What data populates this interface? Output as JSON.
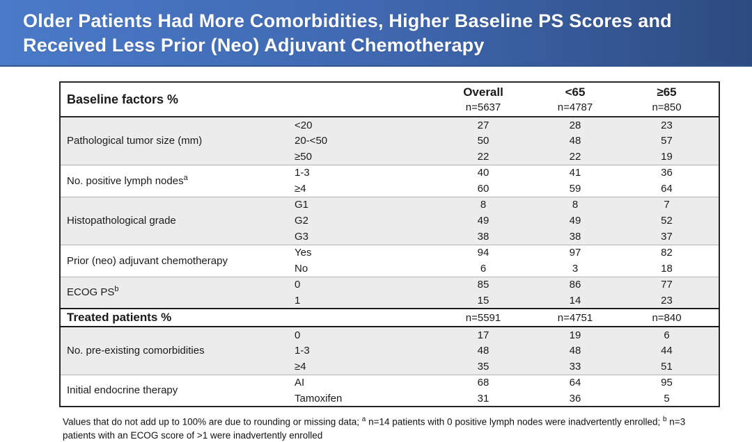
{
  "title": {
    "line1": "Older Patients Had More Comorbidities, Higher Baseline PS Scores and",
    "line2": "Received Less Prior (Neo) Adjuvant Chemotherapy"
  },
  "colors": {
    "banner_gradient_left": "#4a7ac9",
    "banner_gradient_right": "#2d4b80",
    "row_shade": "#ececec",
    "table_border": "#262626",
    "title_text": "#ffffff"
  },
  "table": {
    "header": {
      "label": "Baseline factors %",
      "columns": [
        {
          "name": "Overall",
          "n": "n=5637"
        },
        {
          "name": "<65",
          "n": "n=4787"
        },
        {
          "name": "≥65",
          "n": "n=850"
        }
      ]
    },
    "baseline_groups": [
      {
        "factor": "Pathological tumor size (mm)",
        "sup": "",
        "shaded": true,
        "rows": [
          {
            "level": "<20",
            "values": [
              "27",
              "28",
              "23"
            ]
          },
          {
            "level": "20-<50",
            "values": [
              "50",
              "48",
              "57"
            ]
          },
          {
            "level": "≥50",
            "values": [
              "22",
              "22",
              "19"
            ]
          }
        ]
      },
      {
        "factor": "No. positive lymph nodes",
        "sup": "a",
        "shaded": false,
        "rows": [
          {
            "level": "1-3",
            "values": [
              "40",
              "41",
              "36"
            ]
          },
          {
            "level": "≥4",
            "values": [
              "60",
              "59",
              "64"
            ]
          }
        ]
      },
      {
        "factor": "Histopathological grade",
        "sup": "",
        "shaded": true,
        "rows": [
          {
            "level": "G1",
            "values": [
              "8",
              "8",
              "7"
            ]
          },
          {
            "level": "G2",
            "values": [
              "49",
              "49",
              "52"
            ]
          },
          {
            "level": "G3",
            "values": [
              "38",
              "38",
              "37"
            ]
          }
        ]
      },
      {
        "factor": "Prior (neo) adjuvant chemotherapy",
        "sup": "",
        "shaded": false,
        "rows": [
          {
            "level": "Yes",
            "values": [
              "94",
              "97",
              "82"
            ]
          },
          {
            "level": "No",
            "values": [
              "6",
              "3",
              "18"
            ]
          }
        ]
      },
      {
        "factor": "ECOG PS",
        "sup": "b",
        "shaded": true,
        "rows": [
          {
            "level": "0",
            "values": [
              "85",
              "86",
              "77"
            ]
          },
          {
            "level": "1",
            "values": [
              "15",
              "14",
              "23"
            ]
          }
        ]
      }
    ],
    "treated_row": {
      "label": "Treated patients %",
      "values": [
        "n=5591",
        "n=4751",
        "n=840"
      ]
    },
    "treated_groups": [
      {
        "factor": "No. pre-existing comorbidities",
        "sup": "",
        "shaded": true,
        "rows": [
          {
            "level": "0",
            "values": [
              "17",
              "19",
              "6"
            ]
          },
          {
            "level": "1-3",
            "values": [
              "48",
              "48",
              "44"
            ]
          },
          {
            "level": "≥4",
            "values": [
              "35",
              "33",
              "51"
            ]
          }
        ]
      },
      {
        "factor": "Initial endocrine therapy",
        "sup": "",
        "shaded": false,
        "rows": [
          {
            "level": "AI",
            "values": [
              "68",
              "64",
              "95"
            ]
          },
          {
            "level": "Tamoxifen",
            "values": [
              "31",
              "36",
              "5"
            ]
          }
        ]
      }
    ]
  },
  "footnote": {
    "part1": "Values that do not add up to 100% are due to rounding or missing data; ",
    "sup_a": "a",
    "part2": " n=14 patients with 0 positive lymph nodes were inadvertently enrolled; ",
    "sup_b": "b",
    "part3": " n=3 patients with an ECOG score of >1 were inadvertently enrolled"
  }
}
